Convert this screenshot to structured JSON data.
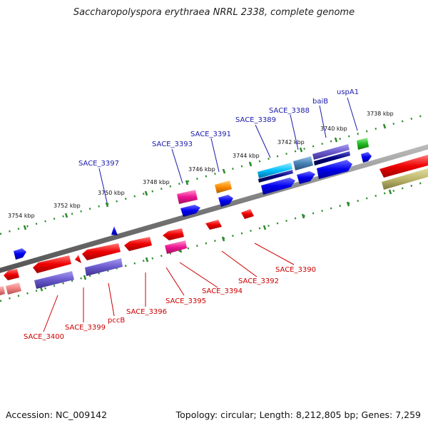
{
  "title": "Saccharopolyspora erythraea NRRL 2338, complete genome",
  "footer": {
    "accession": "Accession: NC_009142",
    "summary": "Topology: circular; Length: 8,212,805 bp; Genes: 7,259"
  },
  "ticks": [
    "3738 kbp",
    "3740 kbp",
    "3742 kbp",
    "3744 kbp",
    "3746 kbp",
    "3748 kbp",
    "3750 kbp",
    "3752 kbp",
    "3754 kbp"
  ],
  "labels_top": [
    "uspA1",
    "baiB",
    "SACE_3388",
    "SACE_3389",
    "SACE_3391",
    "SACE_3393",
    "SACE_3397"
  ],
  "labels_bottom": [
    "SACE_3390",
    "SACE_3392",
    "SACE_3394",
    "SACE_3395",
    "SACE_3396",
    "pccB",
    "SACE_3399",
    "SACE_3400"
  ],
  "colors": {
    "top_strand": "#0000ee",
    "bottom_strand": "#ee0000",
    "backbone": "#888888",
    "tick_green": "#2a8a2a"
  }
}
